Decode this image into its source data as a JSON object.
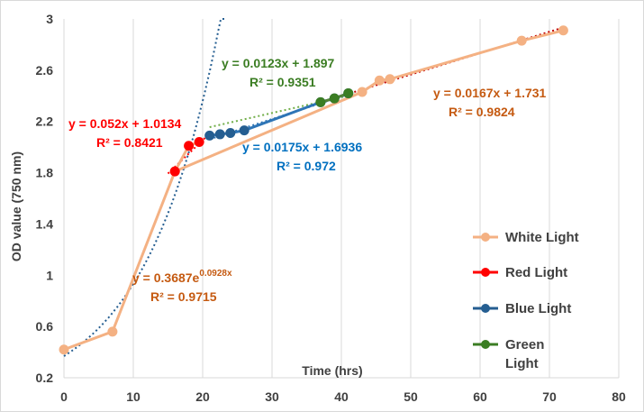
{
  "chart_data": {
    "type": "scatter",
    "xlabel": "Time (hrs)",
    "ylabel": "OD value (750 nm)",
    "xlim": [
      0,
      80
    ],
    "ylim": [
      0.2,
      3
    ],
    "x_ticks": [
      0,
      10,
      20,
      30,
      40,
      50,
      60,
      70,
      80
    ],
    "y_ticks": [
      0.2,
      0.6,
      1,
      1.4,
      1.8,
      2.2,
      2.6,
      3
    ],
    "y_tick_labels": [
      "0.2",
      "0.6",
      "1",
      "1.4",
      "1.8",
      "2.2",
      "2.6",
      "3"
    ],
    "grid": "vertical",
    "legend_position": "right",
    "series": [
      {
        "name": "White Light",
        "color": "#F4B183",
        "marker_color": "#F4B183",
        "points": [
          [
            0,
            0.42
          ],
          [
            7,
            0.56
          ],
          [
            16,
            1.81
          ],
          [
            43,
            2.43
          ],
          [
            45.5,
            2.52
          ],
          [
            47,
            2.53
          ],
          [
            66,
            2.83
          ],
          [
            72,
            2.91
          ]
        ]
      },
      {
        "name": "Red Light",
        "color": "#F4B183",
        "marker_color": "#FF0000",
        "points": [
          [
            16,
            1.81
          ],
          [
            18,
            2.01
          ],
          [
            19.5,
            2.04
          ]
        ]
      },
      {
        "name": "Blue Light",
        "color": "#2E75B6",
        "marker_color": "#255E91",
        "points": [
          [
            21,
            2.09
          ],
          [
            22.5,
            2.1
          ],
          [
            24,
            2.11
          ],
          [
            26,
            2.13
          ],
          [
            37,
            2.35
          ],
          [
            39,
            2.38
          ],
          [
            41,
            2.42
          ]
        ]
      },
      {
        "name": "Green Light",
        "color": "#548235",
        "marker_color": "#3B7D23",
        "points": [
          [
            37,
            2.35
          ],
          [
            39,
            2.38
          ],
          [
            41,
            2.42
          ]
        ]
      }
    ],
    "trendlines": [
      {
        "kind": "exponential",
        "a": 0.3687,
        "b": 0.0928,
        "x_range": [
          0,
          23.5
        ],
        "color": "#255E91"
      },
      {
        "kind": "linear",
        "m": 0.052,
        "c": 1.0134,
        "x_range": [
          15,
          20.5
        ],
        "color": "#FF0000"
      },
      {
        "kind": "linear",
        "m": 0.0123,
        "c": 1.897,
        "x_range": [
          21,
          42
        ],
        "color": "#70AD47"
      },
      {
        "kind": "linear",
        "m": 0.0175,
        "c": 1.6936,
        "x_range": [
          21,
          41
        ],
        "color": "#2E75B6"
      },
      {
        "kind": "linear",
        "m": 0.0167,
        "c": 1.731,
        "x_range": [
          40,
          72
        ],
        "color": "#C00000"
      }
    ],
    "equations": [
      {
        "id": "exp",
        "eq": "y = 0.3687e",
        "exp": "0.0928x",
        "r2": "R² = 0.9715",
        "color": "#C55A11"
      },
      {
        "id": "red",
        "eq": "y = 0.052x + 1.0134",
        "r2": "R² = 0.8421",
        "color": "#FF0000"
      },
      {
        "id": "green",
        "eq": "y = 0.0123x + 1.897",
        "r2": "R² = 0.9351",
        "color": "#3B7D23"
      },
      {
        "id": "blue",
        "eq": "y = 0.0175x + 1.6936",
        "r2": "R² = 0.972",
        "color": "#0070C0"
      },
      {
        "id": "white",
        "eq": "y = 0.0167x + 1.731",
        "r2": "R² = 0.9824",
        "color": "#C55A11"
      }
    ],
    "legend": [
      {
        "label": "White Light",
        "color": "#F4B183"
      },
      {
        "label": "Red Light",
        "color": "#FF0000"
      },
      {
        "label": "Blue Light",
        "color": "#255E91"
      },
      {
        "label": "Green Light",
        "color": "#3B7D23",
        "lines": [
          "Green",
          "Light"
        ]
      }
    ]
  }
}
